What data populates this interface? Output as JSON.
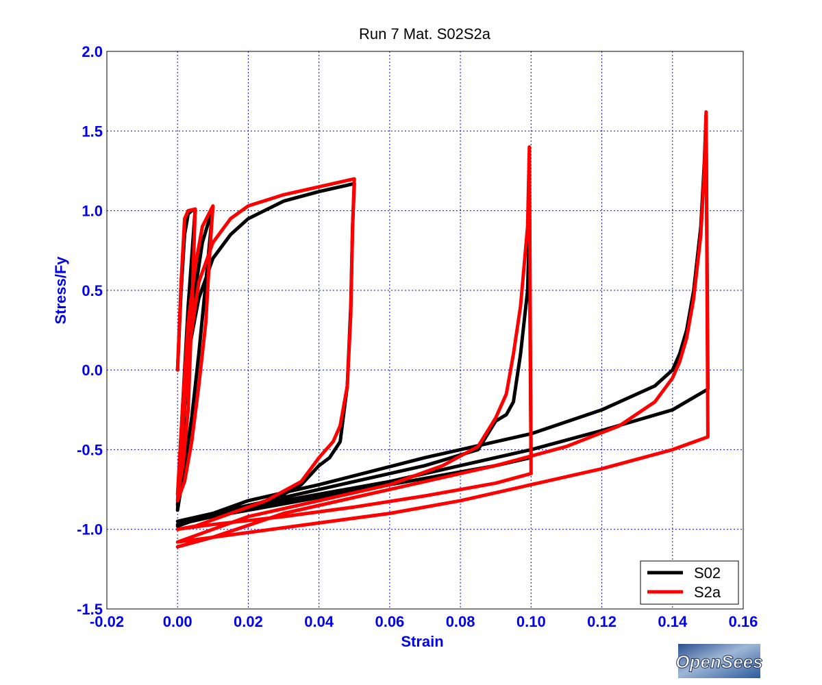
{
  "colors": {
    "axis_text": "#0000ee",
    "grid": "#0000ee",
    "frame": "#000000",
    "background": "#ffffff"
  },
  "chart_data": {
    "type": "line",
    "title": "Run 7   Mat. S02S2a",
    "xlabel": "Strain",
    "ylabel": "Stress/Fy",
    "xlim": [
      -0.02,
      0.16
    ],
    "ylim": [
      -1.5,
      2.0
    ],
    "xticks": [
      -0.02,
      0.0,
      0.02,
      0.04,
      0.06,
      0.08,
      0.1,
      0.12,
      0.14,
      0.16
    ],
    "xtick_labels": [
      "-0.02",
      "0.00",
      "0.02",
      "0.04",
      "0.06",
      "0.08",
      "0.10",
      "0.12",
      "0.14",
      "0.16"
    ],
    "yticks": [
      -1.5,
      -1.0,
      -0.5,
      0.0,
      0.5,
      1.0,
      1.5,
      2.0
    ],
    "ytick_labels": [
      "-1.5",
      "-1.0",
      "-0.5",
      "0.0",
      "0.5",
      "1.0",
      "1.5",
      "2.0"
    ],
    "grid": true,
    "legend_position": "bottom-right",
    "series": [
      {
        "name": "S02",
        "color": "#000000",
        "x": [
          0.0,
          0.001,
          0.002,
          0.003,
          0.004,
          0.005,
          0.003,
          0.0015,
          0.0005,
          0.0,
          0.0015,
          0.003,
          0.005,
          0.007,
          0.01,
          0.008,
          0.006,
          0.004,
          0.002,
          0.0,
          0.0015,
          0.003,
          0.006,
          0.01,
          0.015,
          0.02,
          0.03,
          0.04,
          0.05,
          0.0495,
          0.049,
          0.048,
          0.046,
          0.043,
          0.04,
          0.035,
          0.03,
          0.02,
          0.01,
          0.0,
          0.01,
          0.02,
          0.03,
          0.04,
          0.05,
          0.06,
          0.07,
          0.08,
          0.09,
          0.1,
          0.0995,
          0.099,
          0.097,
          0.095,
          0.093,
          0.09,
          0.085,
          0.07,
          0.05,
          0.03,
          0.0,
          0.01,
          0.02,
          0.04,
          0.06,
          0.08,
          0.1,
          0.12,
          0.14,
          0.15,
          0.1495,
          0.149,
          0.148,
          0.146,
          0.144,
          0.142,
          0.14,
          0.135,
          0.12,
          0.1,
          0.07,
          0.04,
          0.02,
          0.0
        ],
        "y": [
          0.0,
          0.5,
          0.85,
          0.98,
          1.0,
          1.01,
          0.4,
          -0.2,
          -0.6,
          -0.85,
          -0.4,
          0.1,
          0.5,
          0.8,
          1.02,
          0.55,
          0.1,
          -0.3,
          -0.6,
          -0.88,
          -0.3,
          0.1,
          0.45,
          0.7,
          0.85,
          0.95,
          1.06,
          1.12,
          1.17,
          0.9,
          0.4,
          -0.1,
          -0.45,
          -0.55,
          -0.6,
          -0.72,
          -0.78,
          -0.86,
          -0.92,
          -0.97,
          -0.92,
          -0.88,
          -0.84,
          -0.8,
          -0.76,
          -0.72,
          -0.68,
          -0.64,
          -0.6,
          -0.55,
          0.9,
          0.5,
          0.1,
          -0.2,
          -0.28,
          -0.32,
          -0.5,
          -0.6,
          -0.7,
          -0.8,
          -0.95,
          -0.9,
          -0.86,
          -0.78,
          -0.7,
          -0.6,
          -0.5,
          -0.38,
          -0.25,
          -0.12,
          1.6,
          1.3,
          0.9,
          0.5,
          0.25,
          0.1,
          0.0,
          -0.1,
          -0.25,
          -0.4,
          -0.55,
          -0.72,
          -0.82,
          -0.98
        ]
      },
      {
        "name": "S2a",
        "color": "#ff0000",
        "x": [
          0.0,
          0.001,
          0.002,
          0.003,
          0.005,
          0.004,
          0.003,
          0.0015,
          0.0005,
          0.0,
          0.0015,
          0.003,
          0.005,
          0.007,
          0.01,
          0.009,
          0.008,
          0.006,
          0.004,
          0.002,
          0.0,
          0.002,
          0.004,
          0.006,
          0.01,
          0.015,
          0.02,
          0.03,
          0.04,
          0.05,
          0.0495,
          0.049,
          0.048,
          0.046,
          0.044,
          0.042,
          0.04,
          0.035,
          0.025,
          0.015,
          0.005,
          0.0,
          0.01,
          0.03,
          0.05,
          0.07,
          0.09,
          0.1,
          0.0995,
          0.099,
          0.097,
          0.095,
          0.093,
          0.09,
          0.085,
          0.075,
          0.06,
          0.04,
          0.02,
          0.0,
          0.02,
          0.04,
          0.06,
          0.08,
          0.1,
          0.12,
          0.14,
          0.15,
          0.1495,
          0.149,
          0.148,
          0.146,
          0.144,
          0.142,
          0.14,
          0.135,
          0.125,
          0.11,
          0.09,
          0.07,
          0.05,
          0.03,
          0.01,
          0.0
        ],
        "y": [
          0.0,
          0.55,
          0.95,
          1.0,
          1.01,
          0.35,
          -0.25,
          -0.6,
          -0.72,
          -0.78,
          -0.2,
          0.3,
          0.65,
          0.9,
          1.03,
          0.7,
          0.3,
          -0.1,
          -0.45,
          -0.7,
          -0.82,
          -0.2,
          0.25,
          0.55,
          0.8,
          0.95,
          1.03,
          1.1,
          1.15,
          1.2,
          0.9,
          0.35,
          -0.1,
          -0.35,
          -0.45,
          -0.5,
          -0.55,
          -0.7,
          -0.82,
          -0.9,
          -0.98,
          -1.0,
          -0.97,
          -0.92,
          -0.86,
          -0.79,
          -0.71,
          -0.65,
          1.4,
          0.9,
          0.4,
          0.1,
          -0.15,
          -0.3,
          -0.48,
          -0.6,
          -0.72,
          -0.82,
          -0.92,
          -1.08,
          -1.02,
          -0.96,
          -0.9,
          -0.82,
          -0.72,
          -0.62,
          -0.5,
          -0.42,
          1.62,
          1.25,
          0.85,
          0.45,
          0.2,
          0.05,
          -0.05,
          -0.2,
          -0.35,
          -0.48,
          -0.6,
          -0.7,
          -0.8,
          -0.9,
          -1.05,
          -1.11
        ]
      }
    ]
  },
  "logo": {
    "text": "OpenSees"
  }
}
